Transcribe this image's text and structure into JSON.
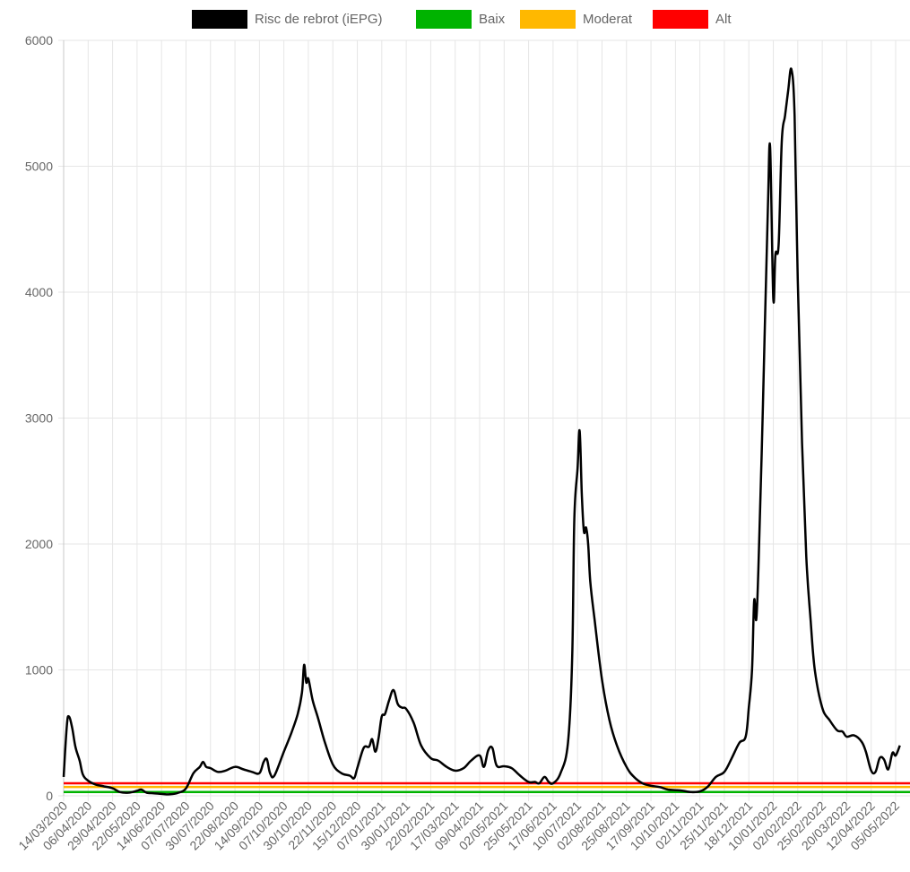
{
  "chart_data": {
    "type": "line",
    "title": "",
    "xlabel": "",
    "ylabel": "",
    "ylim": [
      0,
      6000
    ],
    "yticks": [
      0,
      1000,
      2000,
      3000,
      4000,
      5000,
      6000
    ],
    "grid": true,
    "legend_position": "top",
    "x_tick_labels": [
      "14/03/2020",
      "06/04/2020",
      "29/04/2020",
      "22/05/2020",
      "14/06/2020",
      "07/07/2020",
      "30/07/2020",
      "22/08/2020",
      "14/09/2020",
      "07/10/2020",
      "30/10/2020",
      "22/11/2020",
      "15/12/2020",
      "07/01/2021",
      "30/01/2021",
      "22/02/2021",
      "17/03/2021",
      "09/04/2021",
      "02/05/2021",
      "25/05/2021",
      "17/06/2021",
      "10/07/2021",
      "02/08/2021",
      "25/08/2021",
      "17/09/2021",
      "10/10/2021",
      "02/11/2021",
      "25/11/2021",
      "18/12/2021",
      "10/01/2022",
      "02/02/2022",
      "25/02/2022",
      "20/03/2022",
      "12/04/2022",
      "05/05/2022"
    ],
    "series": [
      {
        "name": "Risc de rebrot (iEPG)",
        "color": "#000000",
        "points": [
          [
            "14/03/2020",
            150
          ],
          [
            "17/03/2020",
            560
          ],
          [
            "19/03/2020",
            630
          ],
          [
            "22/03/2020",
            540
          ],
          [
            "25/03/2020",
            390
          ],
          [
            "29/03/2020",
            280
          ],
          [
            "01/04/2020",
            170
          ],
          [
            "06/04/2020",
            120
          ],
          [
            "13/04/2020",
            90
          ],
          [
            "21/04/2020",
            75
          ],
          [
            "29/04/2020",
            60
          ],
          [
            "06/05/2020",
            30
          ],
          [
            "14/05/2020",
            25
          ],
          [
            "22/05/2020",
            40
          ],
          [
            "26/05/2020",
            50
          ],
          [
            "31/05/2020",
            25
          ],
          [
            "07/06/2020",
            20
          ],
          [
            "14/06/2020",
            15
          ],
          [
            "22/06/2020",
            12
          ],
          [
            "30/06/2020",
            25
          ],
          [
            "07/07/2020",
            60
          ],
          [
            "14/07/2020",
            180
          ],
          [
            "20/07/2020",
            230
          ],
          [
            "23/07/2020",
            270
          ],
          [
            "26/07/2020",
            230
          ],
          [
            "30/07/2020",
            220
          ],
          [
            "06/08/2020",
            190
          ],
          [
            "13/08/2020",
            200
          ],
          [
            "22/08/2020",
            230
          ],
          [
            "30/08/2020",
            210
          ],
          [
            "07/09/2020",
            190
          ],
          [
            "14/09/2020",
            180
          ],
          [
            "18/09/2020",
            270
          ],
          [
            "21/09/2020",
            290
          ],
          [
            "24/09/2020",
            180
          ],
          [
            "28/09/2020",
            160
          ],
          [
            "07/10/2020",
            350
          ],
          [
            "14/10/2020",
            500
          ],
          [
            "20/10/2020",
            650
          ],
          [
            "24/10/2020",
            820
          ],
          [
            "26/10/2020",
            1040
          ],
          [
            "28/10/2020",
            900
          ],
          [
            "30/10/2020",
            930
          ],
          [
            "03/11/2020",
            760
          ],
          [
            "08/11/2020",
            620
          ],
          [
            "14/11/2020",
            440
          ],
          [
            "22/11/2020",
            250
          ],
          [
            "30/11/2020",
            180
          ],
          [
            "08/12/2020",
            160
          ],
          [
            "12/12/2020",
            140
          ],
          [
            "15/12/2020",
            220
          ],
          [
            "21/12/2020",
            380
          ],
          [
            "26/12/2020",
            390
          ],
          [
            "29/12/2020",
            450
          ],
          [
            "01/01/2021",
            350
          ],
          [
            "04/01/2021",
            460
          ],
          [
            "07/01/2021",
            630
          ],
          [
            "10/01/2021",
            650
          ],
          [
            "14/01/2021",
            760
          ],
          [
            "18/01/2021",
            840
          ],
          [
            "22/01/2021",
            730
          ],
          [
            "26/01/2021",
            700
          ],
          [
            "30/01/2021",
            690
          ],
          [
            "06/02/2021",
            580
          ],
          [
            "13/02/2021",
            400
          ],
          [
            "22/02/2021",
            300
          ],
          [
            "01/03/2021",
            280
          ],
          [
            "09/03/2021",
            230
          ],
          [
            "17/03/2021",
            200
          ],
          [
            "25/03/2021",
            220
          ],
          [
            "01/04/2021",
            280
          ],
          [
            "09/04/2021",
            320
          ],
          [
            "13/04/2021",
            230
          ],
          [
            "17/04/2021",
            360
          ],
          [
            "21/04/2021",
            380
          ],
          [
            "25/04/2021",
            240
          ],
          [
            "02/05/2021",
            235
          ],
          [
            "09/05/2021",
            220
          ],
          [
            "17/05/2021",
            160
          ],
          [
            "25/05/2021",
            110
          ],
          [
            "31/05/2021",
            110
          ],
          [
            "04/06/2021",
            100
          ],
          [
            "09/06/2021",
            150
          ],
          [
            "13/06/2021",
            110
          ],
          [
            "17/06/2021",
            100
          ],
          [
            "24/06/2021",
            180
          ],
          [
            "01/07/2021",
            420
          ],
          [
            "05/07/2021",
            1100
          ],
          [
            "07/07/2021",
            2200
          ],
          [
            "10/07/2021",
            2600
          ],
          [
            "12/07/2021",
            2900
          ],
          [
            "14/07/2021",
            2400
          ],
          [
            "16/07/2021",
            2100
          ],
          [
            "18/07/2021",
            2130
          ],
          [
            "20/07/2021",
            2000
          ],
          [
            "22/07/2021",
            1700
          ],
          [
            "26/07/2021",
            1400
          ],
          [
            "02/08/2021",
            920
          ],
          [
            "09/08/2021",
            600
          ],
          [
            "16/08/2021",
            400
          ],
          [
            "25/08/2021",
            230
          ],
          [
            "01/09/2021",
            150
          ],
          [
            "09/09/2021",
            100
          ],
          [
            "17/09/2021",
            80
          ],
          [
            "25/09/2021",
            70
          ],
          [
            "03/10/2021",
            50
          ],
          [
            "10/10/2021",
            45
          ],
          [
            "17/10/2021",
            40
          ],
          [
            "25/10/2021",
            30
          ],
          [
            "02/11/2021",
            35
          ],
          [
            "09/11/2021",
            70
          ],
          [
            "17/11/2021",
            150
          ],
          [
            "25/11/2021",
            190
          ],
          [
            "02/12/2021",
            300
          ],
          [
            "09/12/2021",
            420
          ],
          [
            "15/12/2021",
            470
          ],
          [
            "18/12/2021",
            700
          ],
          [
            "21/12/2021",
            1000
          ],
          [
            "23/12/2021",
            1550
          ],
          [
            "25/12/2021",
            1400
          ],
          [
            "27/12/2021",
            1800
          ],
          [
            "30/12/2021",
            2700
          ],
          [
            "02/01/2022",
            3700
          ],
          [
            "05/01/2022",
            4700
          ],
          [
            "07/01/2022",
            5150
          ],
          [
            "10/01/2022",
            3950
          ],
          [
            "12/01/2022",
            4300
          ],
          [
            "15/01/2022",
            4380
          ],
          [
            "18/01/2022",
            5200
          ],
          [
            "21/01/2022",
            5400
          ],
          [
            "24/01/2022",
            5600
          ],
          [
            "27/01/2022",
            5770
          ],
          [
            "30/01/2022",
            5400
          ],
          [
            "02/02/2022",
            4100
          ],
          [
            "06/02/2022",
            2800
          ],
          [
            "10/02/2022",
            1900
          ],
          [
            "14/02/2022",
            1400
          ],
          [
            "18/02/2022",
            1000
          ],
          [
            "25/02/2022",
            700
          ],
          [
            "04/03/2022",
            600
          ],
          [
            "11/03/2022",
            520
          ],
          [
            "16/03/2022",
            510
          ],
          [
            "20/03/2022",
            470
          ],
          [
            "27/03/2022",
            480
          ],
          [
            "03/04/2022",
            430
          ],
          [
            "07/04/2022",
            350
          ],
          [
            "12/04/2022",
            200
          ],
          [
            "16/04/2022",
            190
          ],
          [
            "20/04/2022",
            300
          ],
          [
            "24/04/2022",
            290
          ],
          [
            "28/04/2022",
            210
          ],
          [
            "02/05/2022",
            340
          ],
          [
            "05/05/2022",
            320
          ],
          [
            "09/05/2022",
            400
          ]
        ]
      },
      {
        "name": "Baix",
        "color": "#00b300",
        "constant": 30
      },
      {
        "name": "Moderat",
        "color": "#ffb800",
        "constant": 70
      },
      {
        "name": "Alt",
        "color": "#ff0000",
        "constant": 100
      }
    ]
  }
}
